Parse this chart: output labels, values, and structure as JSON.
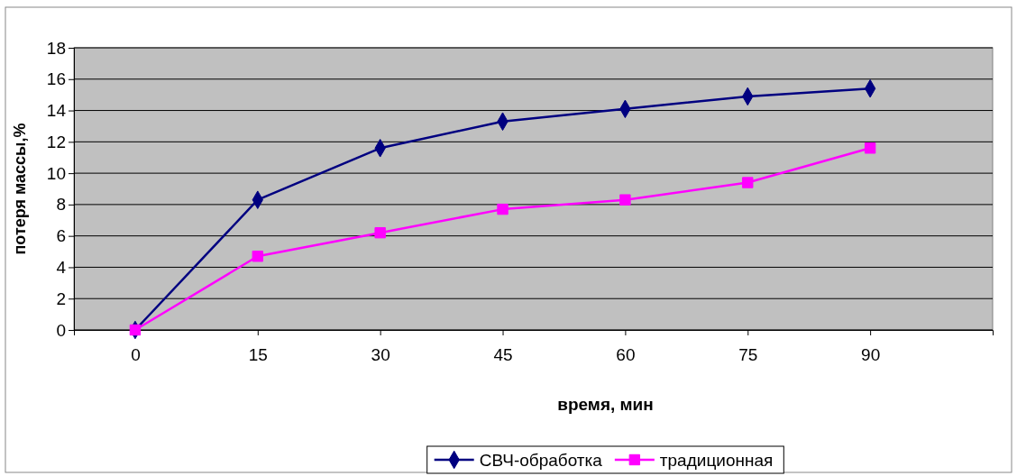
{
  "chart_data": {
    "type": "line",
    "xlabel": "время, мин",
    "ylabel": "потеря массы,%",
    "x": [
      0,
      15,
      30,
      45,
      60,
      75,
      90
    ],
    "xlim": [
      -7.5,
      105
    ],
    "xticks": [
      0,
      15,
      30,
      45,
      60,
      75,
      90
    ],
    "ylim": [
      0,
      18
    ],
    "yticks": [
      0,
      2,
      4,
      6,
      8,
      10,
      12,
      14,
      16,
      18
    ],
    "grid": "y",
    "legend": "bottom",
    "line_style": "solid",
    "series": [
      {
        "name": "СВЧ-обработка",
        "color": "#000080",
        "marker": "diamond",
        "values": [
          0,
          8.3,
          11.6,
          13.3,
          14.1,
          14.9,
          15.4
        ]
      },
      {
        "name": "традиционная",
        "color": "#ff00ff",
        "marker": "square",
        "values": [
          0,
          4.7,
          6.2,
          7.7,
          8.3,
          9.4,
          11.6
        ]
      }
    ]
  }
}
